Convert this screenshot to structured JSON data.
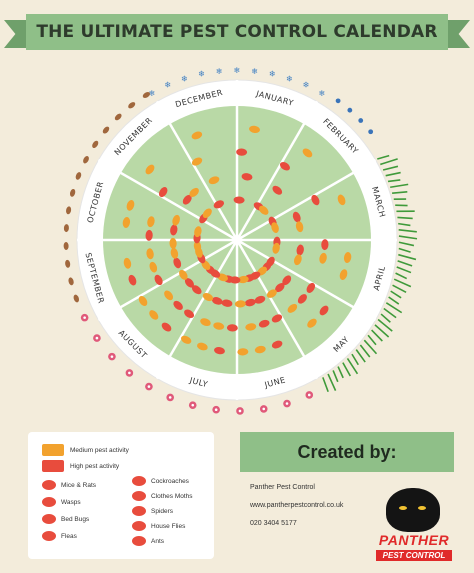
{
  "title": "THE ULTIMATE PEST CONTROL CALENDAR",
  "months": [
    "JANUARY",
    "FEBRUARY",
    "MARCH",
    "APRIL",
    "MAY",
    "JUNE",
    "JULY",
    "AUGUST",
    "SEPTEMBER",
    "OCTOBER",
    "NOVEMBER",
    "DECEMBER"
  ],
  "colors": {
    "background": "#f3ecdb",
    "ribbon": "#8fbf88",
    "ribbon_dark": "#6fa06b",
    "wheel_ring": "#ffffff",
    "wheel_fill": "#b9d9a6",
    "medium": "#f2a22e",
    "high": "#e84c3d",
    "snow": "#3f7fc2",
    "rain": "#3a74b9",
    "grass": "#3f9a3a",
    "flower": "#e0597a",
    "leaf": "#a0673d"
  },
  "legend": {
    "activity": [
      {
        "label": "Medium pest activity",
        "color": "#f2a22e"
      },
      {
        "label": "High pest activity",
        "color": "#e84c3d"
      }
    ],
    "pests_left": [
      "Mice & Rats",
      "Wasps",
      "Bed Bugs",
      "Fleas"
    ],
    "pests_right": [
      "Cockroaches",
      "Clothes Moths",
      "Spiders",
      "House Flies",
      "Ants"
    ]
  },
  "created": {
    "heading": "Created by:",
    "company": "Panther Pest Control",
    "website": "www.pantherpestcontrol.co.uk",
    "phone": "020 3404 5177"
  },
  "logo": {
    "line1": "PANTHER",
    "line2": "PEST CONTROL"
  }
}
